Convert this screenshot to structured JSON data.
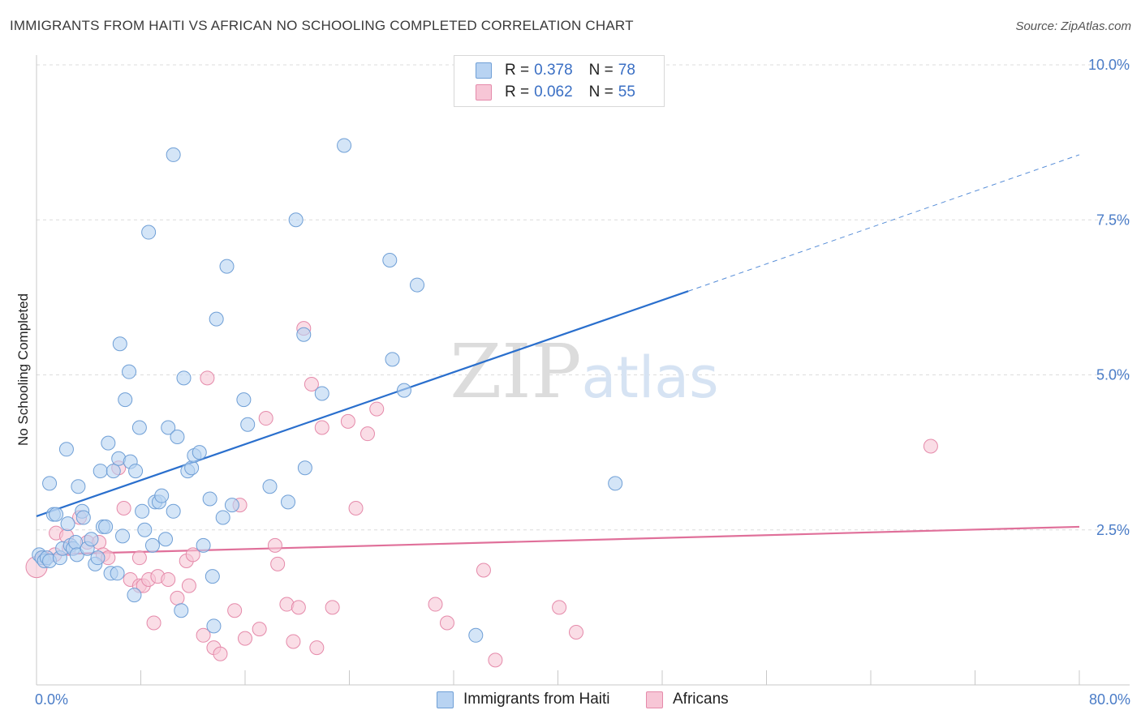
{
  "title": "IMMIGRANTS FROM HAITI VS AFRICAN NO SCHOOLING COMPLETED CORRELATION CHART",
  "source": "Source: ZipAtlas.com",
  "watermark": "ZIPatlas",
  "legend": {
    "rows": [
      {
        "r_label": "R =",
        "r_value": "0.378",
        "n_label": "N =",
        "n_value": "78"
      },
      {
        "r_label": "R =",
        "r_value": "0.062",
        "n_label": "N =",
        "n_value": "55"
      }
    ]
  },
  "bottom_legend": [
    "Immigrants from Haiti",
    "Africans"
  ],
  "colors": {
    "blue_fill": "#b8d3f2",
    "blue_stroke": "#6f9fd6",
    "blue_line": "#2a6fcd",
    "pink_fill": "#f7c6d6",
    "pink_stroke": "#e58aaa",
    "pink_line": "#e0709a",
    "grid": "#dcdcdc",
    "tick_text": "#4a7cc7"
  },
  "chart_data": {
    "type": "scatter",
    "title": "IMMIGRANTS FROM HAITI VS AFRICAN NO SCHOOLING COMPLETED CORRELATION CHART",
    "xlabel": "",
    "ylabel": "No Schooling Completed",
    "xlim": [
      0,
      80
    ],
    "ylim": [
      0,
      10
    ],
    "x_tick_labels": [
      "0.0%",
      "80.0%"
    ],
    "y_ticks": [
      2.5,
      5.0,
      7.5,
      10.0
    ],
    "y_tick_labels": [
      "2.5%",
      "5.0%",
      "7.5%",
      "10.0%"
    ],
    "grid": true,
    "legend_position": "top-center",
    "series": [
      {
        "name": "Immigrants from Haiti",
        "color": "#6f9fd6",
        "trend": {
          "x0": 0,
          "y0": 2.72,
          "x1": 50,
          "y1": 6.35,
          "dashed_to_x": 80,
          "dashed_to_y": 8.55
        },
        "points": [
          [
            0.2,
            2.1
          ],
          [
            0.4,
            2.05
          ],
          [
            0.6,
            2.0
          ],
          [
            0.8,
            2.05
          ],
          [
            1.0,
            2.0
          ],
          [
            1.0,
            3.25
          ],
          [
            1.3,
            2.75
          ],
          [
            1.5,
            2.75
          ],
          [
            1.8,
            2.05
          ],
          [
            2.0,
            2.2
          ],
          [
            2.3,
            3.8
          ],
          [
            2.4,
            2.6
          ],
          [
            2.6,
            2.25
          ],
          [
            2.8,
            2.2
          ],
          [
            3.0,
            2.3
          ],
          [
            3.1,
            2.1
          ],
          [
            3.2,
            3.2
          ],
          [
            3.5,
            2.8
          ],
          [
            3.6,
            2.7
          ],
          [
            3.9,
            2.2
          ],
          [
            4.2,
            2.35
          ],
          [
            4.5,
            1.95
          ],
          [
            4.7,
            2.05
          ],
          [
            4.9,
            3.45
          ],
          [
            5.1,
            2.55
          ],
          [
            5.3,
            2.55
          ],
          [
            5.5,
            3.9
          ],
          [
            5.7,
            1.8
          ],
          [
            5.9,
            3.45
          ],
          [
            6.2,
            1.8
          ],
          [
            6.3,
            3.65
          ],
          [
            6.4,
            5.5
          ],
          [
            6.6,
            2.4
          ],
          [
            6.8,
            4.6
          ],
          [
            7.1,
            5.05
          ],
          [
            7.2,
            3.6
          ],
          [
            7.5,
            1.45
          ],
          [
            7.6,
            3.45
          ],
          [
            7.9,
            4.15
          ],
          [
            8.1,
            2.8
          ],
          [
            8.3,
            2.5
          ],
          [
            8.6,
            7.3
          ],
          [
            8.9,
            2.25
          ],
          [
            9.1,
            2.95
          ],
          [
            9.4,
            2.95
          ],
          [
            9.6,
            3.05
          ],
          [
            9.9,
            2.35
          ],
          [
            10.1,
            4.15
          ],
          [
            10.5,
            2.8
          ],
          [
            10.5,
            8.55
          ],
          [
            10.8,
            4.0
          ],
          [
            11.1,
            1.2
          ],
          [
            11.3,
            4.95
          ],
          [
            11.6,
            3.45
          ],
          [
            11.9,
            3.5
          ],
          [
            12.1,
            3.7
          ],
          [
            12.5,
            3.75
          ],
          [
            12.8,
            2.25
          ],
          [
            13.3,
            3.0
          ],
          [
            13.5,
            1.75
          ],
          [
            13.6,
            0.95
          ],
          [
            13.8,
            5.9
          ],
          [
            14.3,
            2.7
          ],
          [
            14.6,
            6.75
          ],
          [
            15.0,
            2.9
          ],
          [
            15.9,
            4.6
          ],
          [
            16.2,
            4.2
          ],
          [
            17.9,
            3.2
          ],
          [
            19.3,
            2.95
          ],
          [
            19.9,
            7.5
          ],
          [
            20.5,
            5.65
          ],
          [
            20.6,
            3.5
          ],
          [
            21.9,
            4.7
          ],
          [
            23.6,
            8.7
          ],
          [
            27.1,
            6.85
          ],
          [
            27.3,
            5.25
          ],
          [
            28.2,
            4.75
          ],
          [
            29.2,
            6.45
          ],
          [
            44.4,
            3.25
          ],
          [
            33.7,
            0.8
          ]
        ]
      },
      {
        "name": "Africans",
        "color": "#e58aaa",
        "trend": {
          "x0": 0,
          "y0": 2.1,
          "x1": 80,
          "y1": 2.55
        },
        "points": [
          [
            0.0,
            1.9
          ],
          [
            0.5,
            2.05
          ],
          [
            1.4,
            2.1
          ],
          [
            1.5,
            2.45
          ],
          [
            2.3,
            2.4
          ],
          [
            2.5,
            2.2
          ],
          [
            3.3,
            2.7
          ],
          [
            3.9,
            2.3
          ],
          [
            4.8,
            2.3
          ],
          [
            5.1,
            2.1
          ],
          [
            5.5,
            2.05
          ],
          [
            6.3,
            3.5
          ],
          [
            6.7,
            2.85
          ],
          [
            7.2,
            1.7
          ],
          [
            7.9,
            1.6
          ],
          [
            7.9,
            2.05
          ],
          [
            8.2,
            1.6
          ],
          [
            8.6,
            1.7
          ],
          [
            9.0,
            1.0
          ],
          [
            9.3,
            1.75
          ],
          [
            10.1,
            1.7
          ],
          [
            10.8,
            1.4
          ],
          [
            11.5,
            2.0
          ],
          [
            11.7,
            1.6
          ],
          [
            12.0,
            2.1
          ],
          [
            12.8,
            0.8
          ],
          [
            13.1,
            4.95
          ],
          [
            13.6,
            0.6
          ],
          [
            14.1,
            0.5
          ],
          [
            15.2,
            1.2
          ],
          [
            15.6,
            2.9
          ],
          [
            16.0,
            0.75
          ],
          [
            17.1,
            0.9
          ],
          [
            17.6,
            4.3
          ],
          [
            18.3,
            2.25
          ],
          [
            18.5,
            1.95
          ],
          [
            19.2,
            1.3
          ],
          [
            19.7,
            0.7
          ],
          [
            20.1,
            1.25
          ],
          [
            20.5,
            5.75
          ],
          [
            21.1,
            4.85
          ],
          [
            21.5,
            0.6
          ],
          [
            21.9,
            4.15
          ],
          [
            22.7,
            1.25
          ],
          [
            23.9,
            4.25
          ],
          [
            24.5,
            2.85
          ],
          [
            25.4,
            4.05
          ],
          [
            26.1,
            4.45
          ],
          [
            30.6,
            1.3
          ],
          [
            31.5,
            1.0
          ],
          [
            34.3,
            1.85
          ],
          [
            35.2,
            0.4
          ],
          [
            40.1,
            1.25
          ],
          [
            41.4,
            0.85
          ],
          [
            68.6,
            3.85
          ]
        ]
      }
    ]
  }
}
